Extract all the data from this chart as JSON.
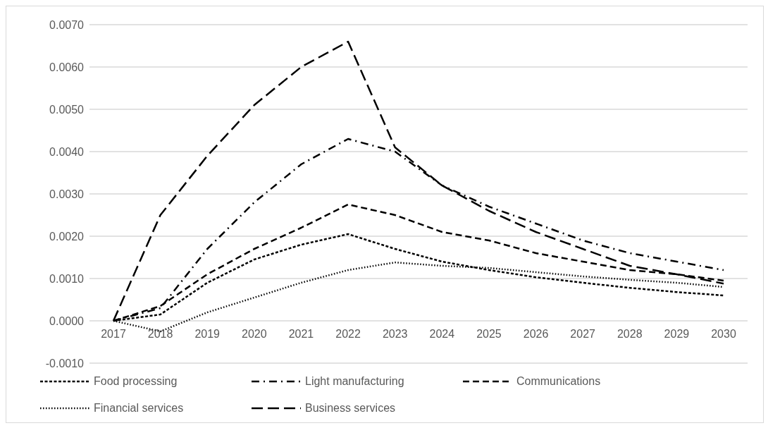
{
  "chart_data": {
    "type": "line",
    "categories": [
      "2017",
      "2018",
      "2019",
      "2020",
      "2021",
      "2022",
      "2023",
      "2024",
      "2025",
      "2026",
      "2027",
      "2028",
      "2029",
      "2030"
    ],
    "series": [
      {
        "name": "Food processing",
        "color": "#000000",
        "line_style": "dashed",
        "values": [
          0,
          0.00015,
          0.0009,
          0.00145,
          0.0018,
          0.00205,
          0.0017,
          0.0014,
          0.0012,
          0.00103,
          0.0009,
          0.00078,
          0.00068,
          0.0006
        ]
      },
      {
        "name": "Light manufacturing",
        "color": "#000000",
        "line_style": "dashdot",
        "values": [
          0,
          0.0003,
          0.0017,
          0.0028,
          0.0037,
          0.0043,
          0.004,
          0.0032,
          0.0027,
          0.0023,
          0.0019,
          0.0016,
          0.0014,
          0.0012
        ]
      },
      {
        "name": "Communications",
        "color": "#000000",
        "line_style": "dashed",
        "values": [
          0,
          0.00035,
          0.0011,
          0.0017,
          0.0022,
          0.00275,
          0.0025,
          0.0021,
          0.0019,
          0.0016,
          0.0014,
          0.0012,
          0.0011,
          0.00095
        ]
      },
      {
        "name": "Financial services",
        "color": "#000000",
        "line_style": "dotted",
        "values": [
          0,
          -0.00025,
          0.0002,
          0.00055,
          0.0009,
          0.0012,
          0.00138,
          0.0013,
          0.00125,
          0.00115,
          0.00105,
          0.00097,
          0.0009,
          0.0008
        ]
      },
      {
        "name": "Business services",
        "color": "#000000",
        "line_style": "longdash",
        "values": [
          0,
          0.0025,
          0.0039,
          0.0051,
          0.006,
          0.0066,
          0.0041,
          0.0032,
          0.0026,
          0.0021,
          0.0017,
          0.0013,
          0.0011,
          0.00088
        ]
      }
    ],
    "ylim": [
      -0.001,
      0.007
    ],
    "yticks": [
      {
        "value": -0.001,
        "label": "-0.0010"
      },
      {
        "value": 0,
        "label": "0.0000"
      },
      {
        "value": 0.001,
        "label": "0.0010"
      },
      {
        "value": 0.002,
        "label": "0.0020"
      },
      {
        "value": 0.003,
        "label": "0.0030"
      },
      {
        "value": 0.004,
        "label": "0.0040"
      },
      {
        "value": 0.005,
        "label": "0.0050"
      },
      {
        "value": 0.006,
        "label": "0.0060"
      },
      {
        "value": 0.007,
        "label": "0.0070"
      }
    ],
    "grid": "y",
    "legend": "bottom",
    "marker": "none"
  }
}
